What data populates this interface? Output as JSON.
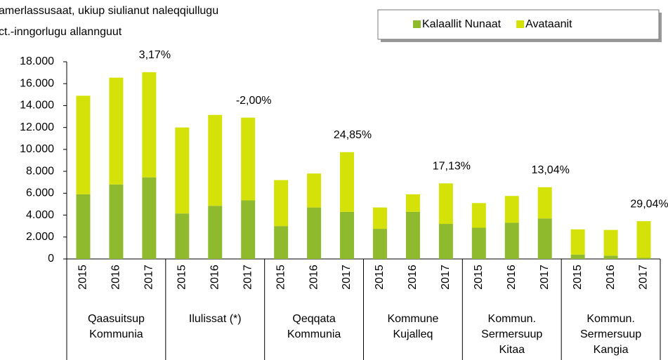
{
  "chart_data": {
    "type": "stacked_bar",
    "title_lines": [
      "amerlassusaat, ukiup siulianut naleqqiullugu",
      "ct.-inngorlugu allannguut"
    ],
    "categories": [
      "2015",
      "2016",
      "2017",
      "2015",
      "2016",
      "2017",
      "2015",
      "2016",
      "2017",
      "2015",
      "2016",
      "2017",
      "2015",
      "2016",
      "2017",
      "2015",
      "2016",
      "2017"
    ],
    "groups": [
      {
        "label": [
          "Qaasuitsup",
          "Kommunia"
        ],
        "annotation": "3,17%"
      },
      {
        "label": [
          "Ilulissat (*)"
        ],
        "annotation": "-2,00%"
      },
      {
        "label": [
          "Qeqqata",
          "Kommunia"
        ],
        "annotation": "24,85%"
      },
      {
        "label": [
          "Kommune",
          "Kujalleq"
        ],
        "annotation": "17,13%"
      },
      {
        "label": [
          "Kommun.",
          "Sermersuup",
          "Kitaa"
        ],
        "annotation": "13,04%"
      },
      {
        "label": [
          "Kommun.",
          "Sermersuup",
          "Kangia"
        ],
        "annotation": "29,04%"
      }
    ],
    "series": [
      {
        "name": "Kalaallit Nunaat",
        "color": "#8fba2e",
        "values": [
          5900,
          6800,
          7450,
          4150,
          4850,
          5350,
          3000,
          4700,
          4300,
          2750,
          4300,
          3200,
          2850,
          3300,
          3700,
          400,
          300,
          100
        ]
      },
      {
        "name": "Avataanit",
        "color": "#d5e20a",
        "values": [
          9000,
          9750,
          9600,
          7850,
          8300,
          7550,
          4200,
          3100,
          5450,
          1950,
          1600,
          3700,
          2250,
          2450,
          2850,
          2300,
          2350,
          3350
        ]
      }
    ],
    "ylim": [
      0,
      18000
    ],
    "yticks": [
      0,
      {
        "value": 2000,
        "label": "2.000"
      },
      {
        "value": 4000,
        "label": "4.000"
      },
      {
        "value": 6000,
        "label": "6.000"
      },
      {
        "value": 8000,
        "label": "8.000"
      },
      {
        "value": 10000,
        "label": "10.000"
      },
      {
        "value": 12000,
        "label": "12.000"
      },
      {
        "value": 14000,
        "label": "14.000"
      },
      {
        "value": 16000,
        "label": "16.000"
      },
      {
        "value": 18000,
        "label": "18.000"
      }
    ],
    "legend": "top-right"
  }
}
